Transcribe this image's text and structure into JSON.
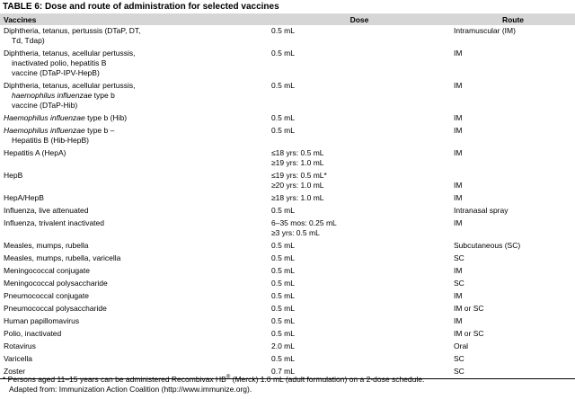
{
  "title": "TABLE 6: Dose and route of administration for selected vaccines",
  "table": {
    "columns": [
      "Vaccines",
      "Dose",
      "Route"
    ],
    "rows": [
      {
        "vaccine": [
          [
            "Diphtheria, tetanus, pertussis (DTaP, DT,"
          ],
          [
            "Td, Tdap)"
          ]
        ],
        "dose": [
          [
            "0.5 mL"
          ]
        ],
        "route": [
          [
            "Intramuscular (IM)"
          ]
        ]
      },
      {
        "vaccine": [
          [
            "Diphtheria, tetanus, acellular pertussis,"
          ],
          [
            "inactivated polio, hepatitis B"
          ],
          [
            "vaccine (DTaP-IPV-HepB)"
          ]
        ],
        "dose": [
          [
            "0.5 mL"
          ]
        ],
        "route": [
          [
            "IM"
          ]
        ]
      },
      {
        "vaccine": [
          [
            "Diphtheria, tetanus, acellular pertussis,"
          ],
          [
            {
              "text": "haemophilus influenzae",
              "style": "italic"
            },
            " type b"
          ],
          [
            "vaccine (DTaP-Hib)"
          ]
        ],
        "dose": [
          [
            "0.5 mL"
          ]
        ],
        "route": [
          [
            "IM"
          ]
        ]
      },
      {
        "vaccine": [
          [
            {
              "text": "Haemophilus influenzae",
              "style": "italic"
            },
            " type b (Hib)"
          ]
        ],
        "dose": [
          [
            "0.5 mL"
          ]
        ],
        "route": [
          [
            "IM"
          ]
        ]
      },
      {
        "vaccine": [
          [
            {
              "text": "Haemophilus influenzae",
              "style": "italic"
            },
            " type b –"
          ],
          [
            "Hepatitis B (Hib-HepB)"
          ]
        ],
        "dose": [
          [
            "0.5 mL"
          ]
        ],
        "route": [
          [
            "IM"
          ]
        ]
      },
      {
        "vaccine": [
          [
            "Hepatitis A (HepA)"
          ]
        ],
        "dose": [
          [
            "≤18 yrs: 0.5 mL"
          ],
          [
            "≥19 yrs: 1.0 mL"
          ]
        ],
        "route": [
          [
            "IM"
          ]
        ]
      },
      {
        "vaccine": [
          [
            "HepB"
          ]
        ],
        "dose": [
          [
            "≤19 yrs: 0.5 mL*"
          ],
          [
            "≥20 yrs: 1.0 mL"
          ]
        ],
        "route": [
          [
            "IM"
          ]
        ],
        "route_align": "bottom"
      },
      {
        "vaccine": [
          [
            "HepA/HepB"
          ]
        ],
        "dose": [
          [
            "≥18 yrs: 1.0 mL"
          ]
        ],
        "route": [
          [
            "IM"
          ]
        ]
      },
      {
        "vaccine": [
          [
            "Influenza, live attenuated"
          ]
        ],
        "dose": [
          [
            "0.5 mL"
          ]
        ],
        "route": [
          [
            "Intranasal spray"
          ]
        ]
      },
      {
        "vaccine": [
          [
            "Influenza, trivalent inactivated"
          ]
        ],
        "dose": [
          [
            "6–35 mos: 0.25 mL"
          ],
          [
            "≥3 yrs: 0.5 mL"
          ]
        ],
        "route": [
          [
            "IM"
          ]
        ]
      },
      {
        "vaccine": [
          [
            "Measles, mumps, rubella"
          ]
        ],
        "dose": [
          [
            "0.5 mL"
          ]
        ],
        "route": [
          [
            "Subcutaneous (SC)"
          ]
        ]
      },
      {
        "vaccine": [
          [
            "Measles, mumps, rubella, varicella"
          ]
        ],
        "dose": [
          [
            "0.5 mL"
          ]
        ],
        "route": [
          [
            "SC"
          ]
        ]
      },
      {
        "vaccine": [
          [
            "Meningococcal conjugate"
          ]
        ],
        "dose": [
          [
            "0.5 mL"
          ]
        ],
        "route": [
          [
            "IM"
          ]
        ]
      },
      {
        "vaccine": [
          [
            "Meningococcal polysaccharide"
          ]
        ],
        "dose": [
          [
            "0.5 mL"
          ]
        ],
        "route": [
          [
            "SC"
          ]
        ]
      },
      {
        "vaccine": [
          [
            "Pneumococcal conjugate"
          ]
        ],
        "dose": [
          [
            "0.5 mL"
          ]
        ],
        "route": [
          [
            "IM"
          ]
        ]
      },
      {
        "vaccine": [
          [
            "Pneumococcal polysaccharide"
          ]
        ],
        "dose": [
          [
            "0.5 mL"
          ]
        ],
        "route": [
          [
            "IM or SC"
          ]
        ]
      },
      {
        "vaccine": [
          [
            "Human papillomavirus"
          ]
        ],
        "dose": [
          [
            "0.5 mL"
          ]
        ],
        "route": [
          [
            "IM"
          ]
        ]
      },
      {
        "vaccine": [
          [
            "Polio, inactivated"
          ]
        ],
        "dose": [
          [
            "0.5 mL"
          ]
        ],
        "route": [
          [
            "IM or SC"
          ]
        ]
      },
      {
        "vaccine": [
          [
            "Rotavirus"
          ]
        ],
        "dose": [
          [
            "2.0 mL"
          ]
        ],
        "route": [
          [
            "Oral"
          ]
        ]
      },
      {
        "vaccine": [
          [
            "Varicella"
          ]
        ],
        "dose": [
          [
            "0.5 mL"
          ]
        ],
        "route": [
          [
            "SC"
          ]
        ]
      },
      {
        "vaccine": [
          [
            "Zoster"
          ]
        ],
        "dose": [
          [
            "0.7 mL"
          ]
        ],
        "route": [
          [
            "SC"
          ]
        ]
      }
    ]
  },
  "footnotes": [
    [
      "* Persons aged 11–15 years can be administered Recombivax HB",
      {
        "text": "®",
        "style": "superscript"
      },
      " (Merck) 1.0 mL (adult formulation) on a 2-dose schedule."
    ],
    [
      "Adapted from: Immunization Action Coalition (http://www.immunize.org)."
    ]
  ]
}
